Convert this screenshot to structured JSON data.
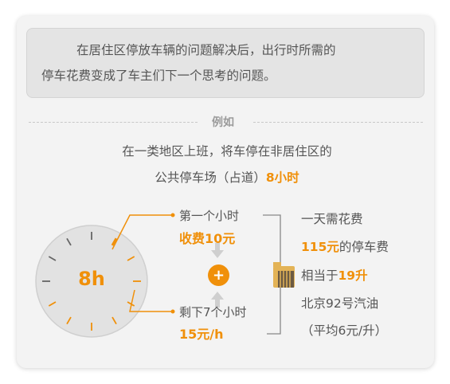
{
  "intro": {
    "line1": "在居住区停放车辆的问题解决后，出行时所需的",
    "line2": "停车花费变成了车主们下一个思考的问题。"
  },
  "example_label": "例如",
  "scenario": {
    "line1": "在一类地区上班，将车停在非居住区的",
    "line2_prefix": "公共停车场（占道）",
    "line2_highlight": "8小时"
  },
  "clock": {
    "label": "8h"
  },
  "first_hour": {
    "label": "第一个小时",
    "fee": "收费10元"
  },
  "plus_symbol": "+",
  "remaining_hours": {
    "label": "剩下7个小时",
    "fee": "15元/h"
  },
  "result": {
    "line1": "一天需花费",
    "line2_highlight": "115元",
    "line2_suffix": "的停车费",
    "line3_prefix": "相当于",
    "line3_highlight": "19升",
    "line4": "北京92号汽油",
    "line5": "（平均6元/升）"
  },
  "icons": [
    "fuel-can-icon",
    "clock-icon",
    "arrow-down-icon",
    "arrow-up-icon",
    "plus-icon"
  ],
  "colors": {
    "accent": "#f0900a",
    "text": "#555555",
    "card": "#f3f3f3",
    "clock_face": "#e2e2e2"
  }
}
